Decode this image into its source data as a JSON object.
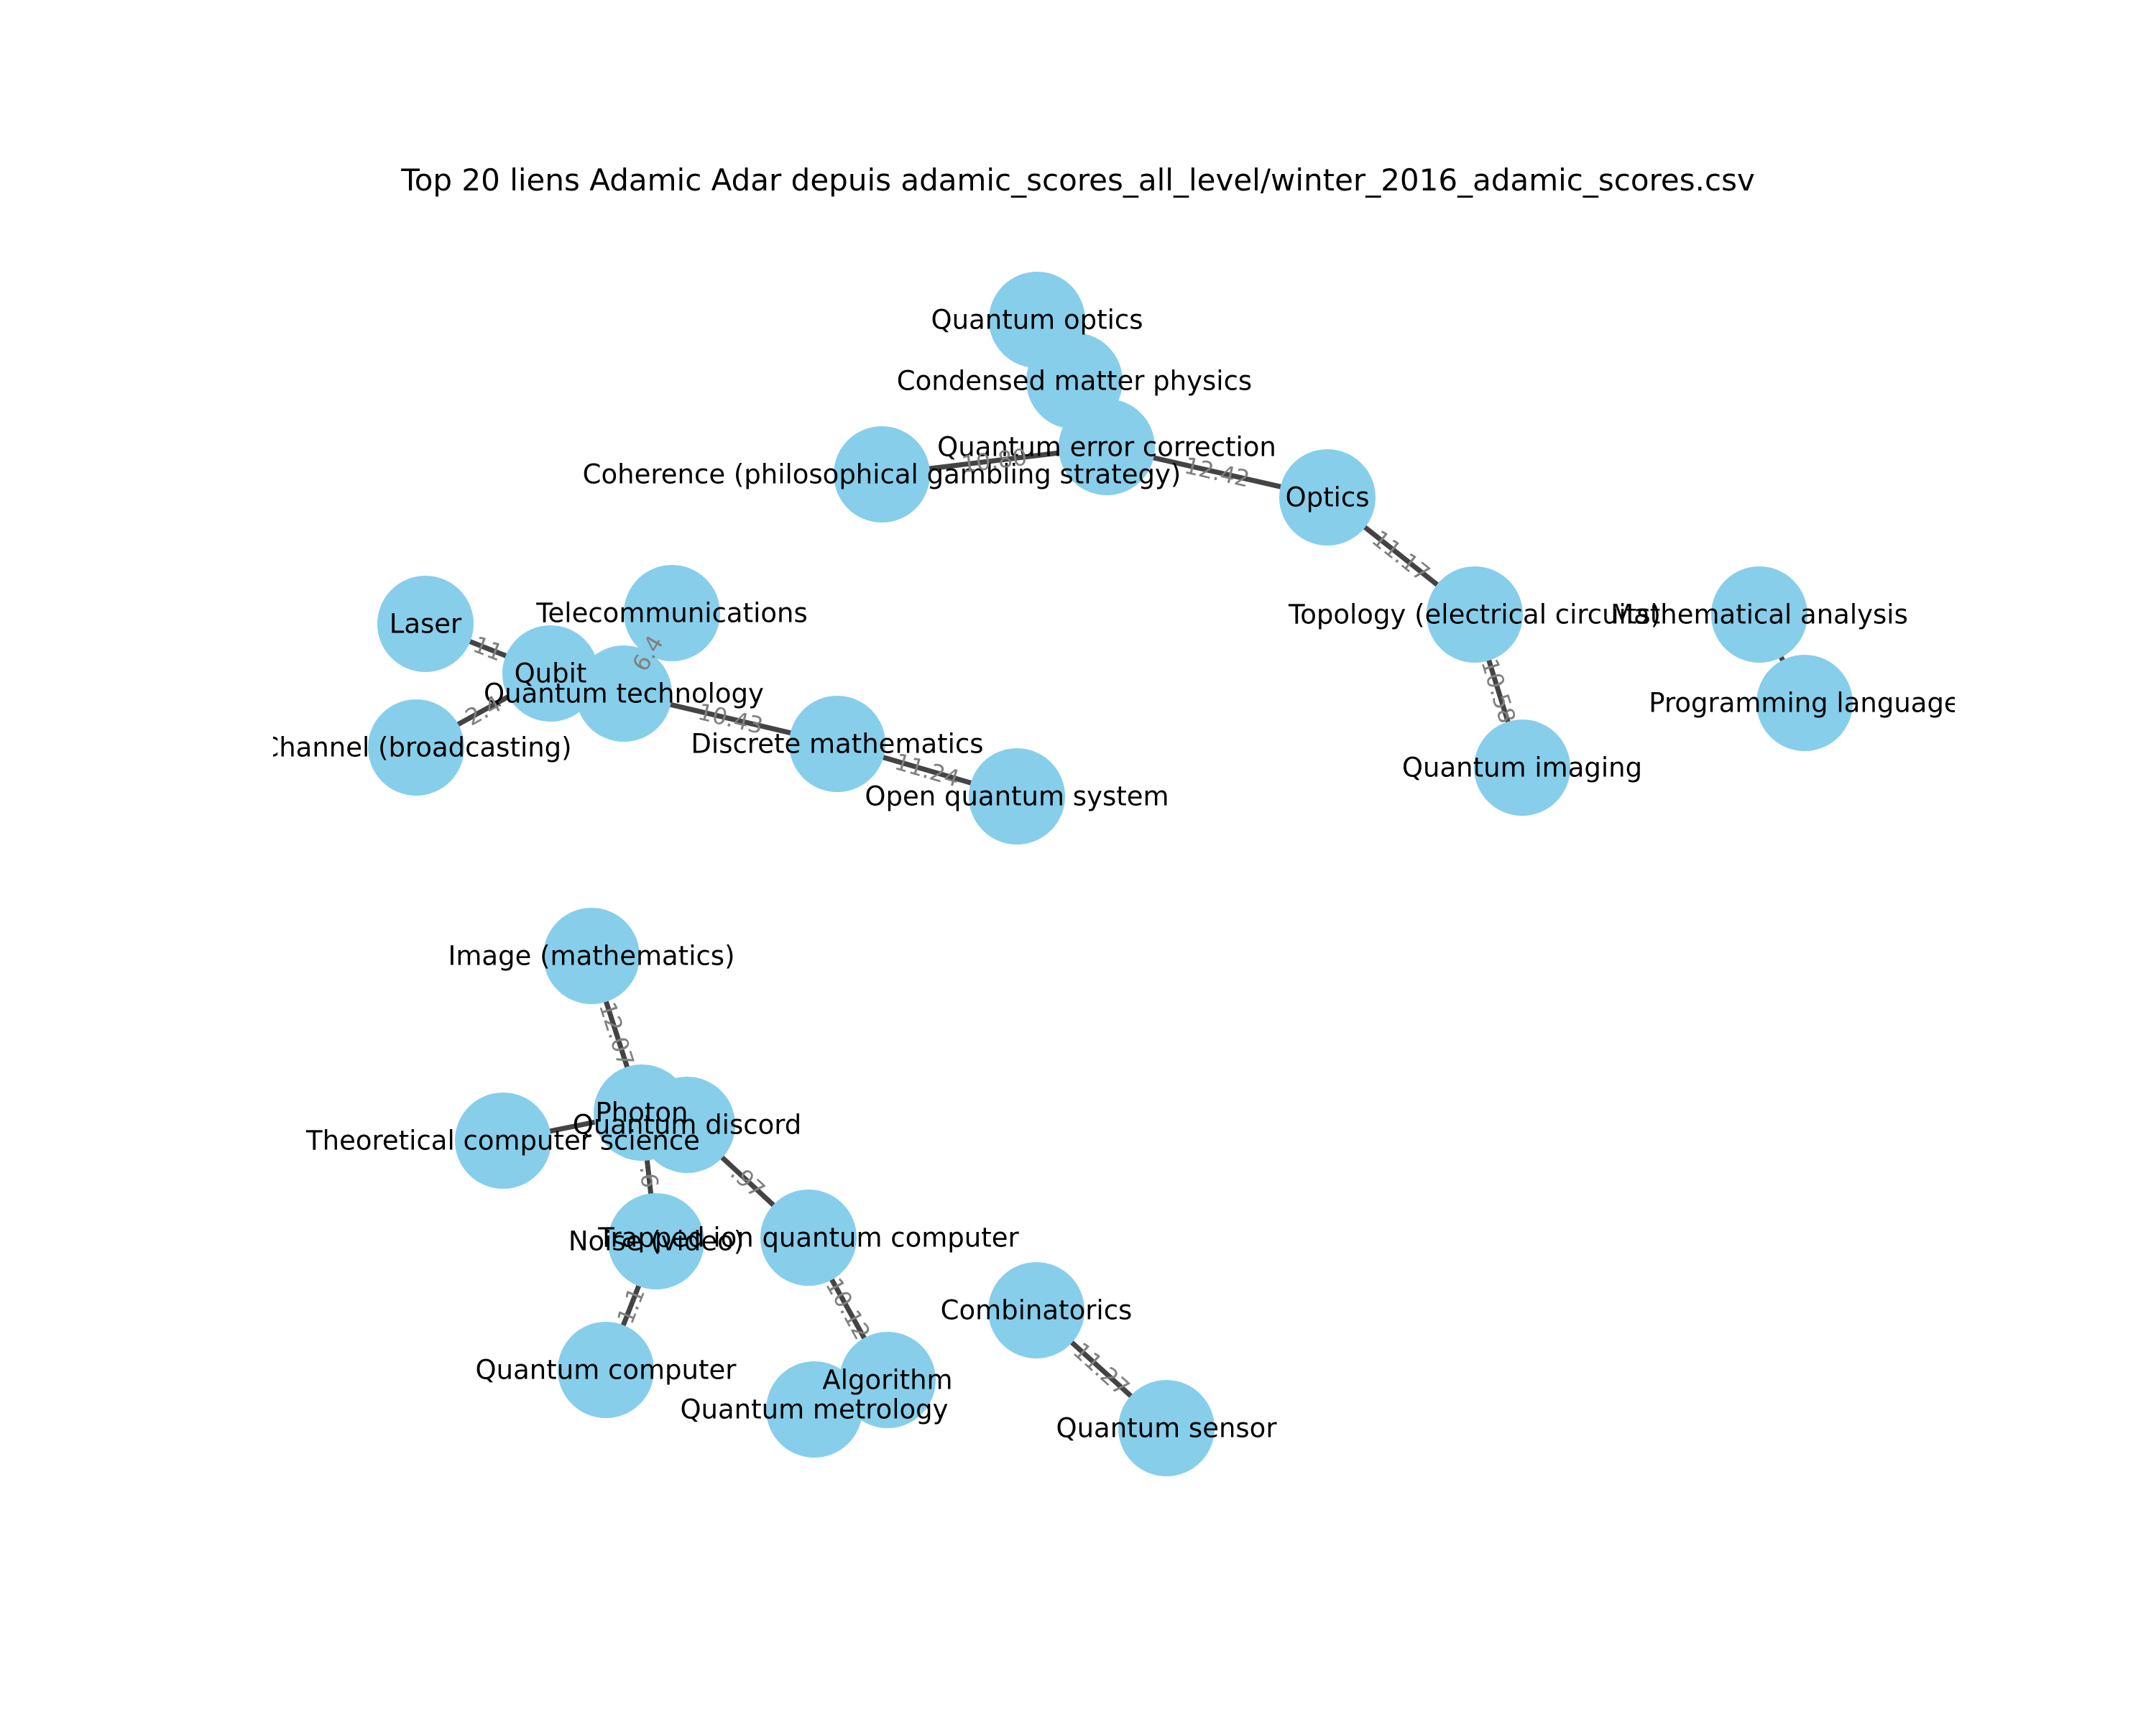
{
  "title": "Top 20 liens Adamic Adar depuis adamic_scores_all_level/winter_2016_adamic_scores.csv",
  "colors": {
    "node": "#87ceeb",
    "edge": "#444444",
    "edge_label": "#808080"
  },
  "nodes": [
    {
      "id": "qoptics",
      "label": "Quantum optics"
    },
    {
      "id": "cmp",
      "label": "Condensed matter physics"
    },
    {
      "id": "qec",
      "label": "Quantum error correction"
    },
    {
      "id": "coh",
      "label": "Coherence (philosophical gambling strategy)"
    },
    {
      "id": "optics",
      "label": "Optics"
    },
    {
      "id": "topo",
      "label": "Topology (electrical circuits)"
    },
    {
      "id": "qimg",
      "label": "Quantum imaging"
    },
    {
      "id": "math",
      "label": "Mathematical analysis"
    },
    {
      "id": "prog",
      "label": "Programming language"
    },
    {
      "id": "laser",
      "label": "Laser"
    },
    {
      "id": "tele",
      "label": "Telecommunications"
    },
    {
      "id": "qubit",
      "label": "Qubit"
    },
    {
      "id": "qtech",
      "label": "Quantum technology"
    },
    {
      "id": "chan",
      "label": "Channel (broadcasting)"
    },
    {
      "id": "dmath",
      "label": "Discrete mathematics"
    },
    {
      "id": "oqs",
      "label": "Open quantum system"
    },
    {
      "id": "image",
      "label": "Image (mathematics)"
    },
    {
      "id": "tcs",
      "label": "Theoretical computer science"
    },
    {
      "id": "photon",
      "label": "Photon"
    },
    {
      "id": "qdisc",
      "label": "Quantum discord"
    },
    {
      "id": "noise",
      "label": "Noise (video)"
    },
    {
      "id": "tiqc",
      "label": "Trapped ion quantum computer"
    },
    {
      "id": "qcomp",
      "label": "Quantum computer"
    },
    {
      "id": "algo",
      "label": "Algorithm"
    },
    {
      "id": "qmet",
      "label": "Quantum metrology"
    },
    {
      "id": "comb",
      "label": "Combinatorics"
    },
    {
      "id": "qsens",
      "label": "Quantum sensor"
    }
  ],
  "edges": [
    {
      "source": "qoptics",
      "target": "cmp",
      "label": ""
    },
    {
      "source": "cmp",
      "target": "qec",
      "label": ""
    },
    {
      "source": "coh",
      "target": "qec",
      "label": "10.80"
    },
    {
      "source": "qec",
      "target": "optics",
      "label": "12.42"
    },
    {
      "source": "optics",
      "target": "topo",
      "label": "11.17"
    },
    {
      "source": "topo",
      "target": "qimg",
      "label": "10.58"
    },
    {
      "source": "math",
      "target": "prog",
      "label": ""
    },
    {
      "source": "laser",
      "target": "qubit",
      "label": "11"
    },
    {
      "source": "tele",
      "target": "qtech",
      "label": "6.4"
    },
    {
      "source": "qubit",
      "target": "qtech",
      "label": ""
    },
    {
      "source": "chan",
      "target": "qubit",
      "label": "2.4"
    },
    {
      "source": "qtech",
      "target": "dmath",
      "label": "10.43"
    },
    {
      "source": "dmath",
      "target": "oqs",
      "label": "11.24"
    },
    {
      "source": "image",
      "target": "photon",
      "label": "12.07"
    },
    {
      "source": "photon",
      "target": "qdisc",
      "label": ""
    },
    {
      "source": "tcs",
      "target": "photon",
      "label": ""
    },
    {
      "source": "photon",
      "target": "noise",
      "label": ".6"
    },
    {
      "source": "qdisc",
      "target": "tiqc",
      "label": ".97"
    },
    {
      "source": "noise",
      "target": "qcomp",
      "label": "1.1"
    },
    {
      "source": "tiqc",
      "target": "algo",
      "label": "10.12"
    },
    {
      "source": "algo",
      "target": "qmet",
      "label": ""
    },
    {
      "source": "comb",
      "target": "qsens",
      "label": "11.27"
    }
  ]
}
